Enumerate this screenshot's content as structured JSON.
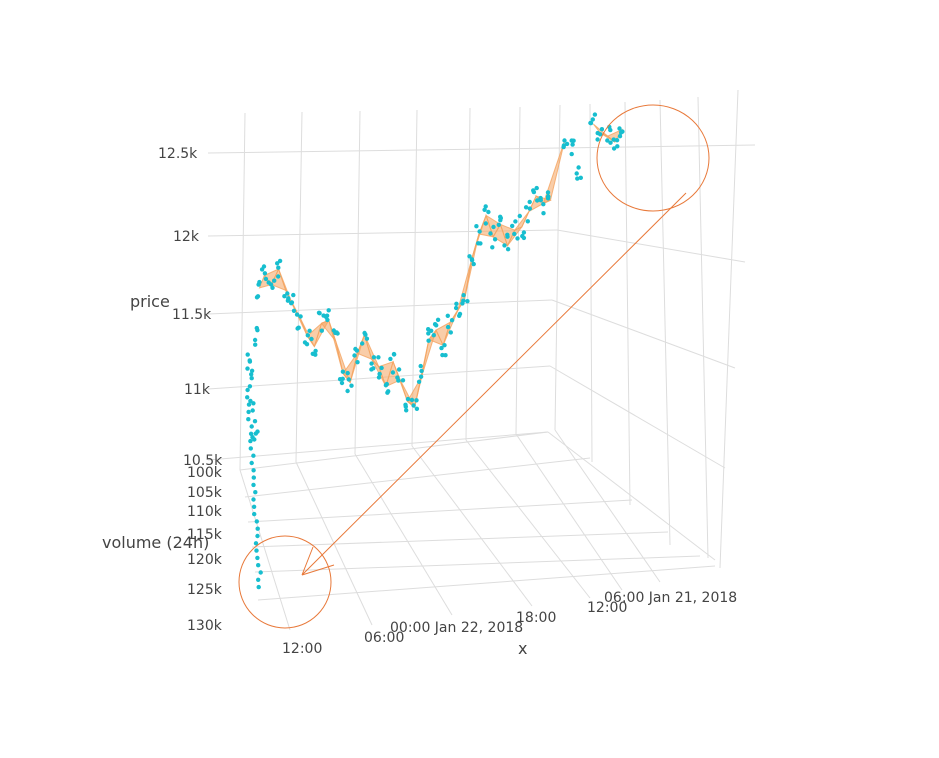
{
  "chart_data": {
    "type": "scatter",
    "xlabel": "x",
    "ylabel": "price",
    "zlabel": "volume (24h)",
    "price_ticks": [
      "12.5k",
      "12k",
      "11.5k",
      "11k",
      "10.5k"
    ],
    "volume_ticks": [
      "100k",
      "105k",
      "110k",
      "115k",
      "120k",
      "125k",
      "130k"
    ],
    "x_ticks": [
      "12:00",
      "06:00",
      "00:00 Jan 22, 2018",
      "18:00",
      "12:00",
      "06:00 Jan 21, 2018"
    ],
    "ylim": [
      10500,
      12700
    ],
    "series": [
      {
        "marker_color": "#17becf",
        "fill_color": "#f4a460",
        "points": [
          [
            "2018-01-22 13:00",
            11150
          ],
          [
            "2018-01-22 12:55",
            11020
          ],
          [
            "2018-01-22 12:50",
            10820
          ],
          [
            "2018-01-22 12:40",
            10640
          ],
          [
            "2018-01-22 12:30",
            11320
          ],
          [
            "2018-01-22 12:20",
            11620
          ],
          [
            "2018-01-22 12:00",
            11700
          ],
          [
            "2018-01-22 11:30",
            11640
          ],
          [
            "2018-01-22 11:00",
            11740
          ],
          [
            "2018-01-22 10:30",
            11600
          ],
          [
            "2018-01-22 10:00",
            11500
          ],
          [
            "2018-01-22 09:30",
            11420
          ],
          [
            "2018-01-22 09:00",
            11300
          ],
          [
            "2018-01-22 08:30",
            11230
          ],
          [
            "2018-01-22 08:00",
            11380
          ],
          [
            "2018-01-22 07:30",
            11400
          ],
          [
            "2018-01-22 07:00",
            11260
          ],
          [
            "2018-01-22 06:30",
            11050
          ],
          [
            "2018-01-22 06:00",
            10990
          ],
          [
            "2018-01-22 05:30",
            11180
          ],
          [
            "2018-01-22 05:00",
            11300
          ],
          [
            "2018-01-22 04:30",
            11140
          ],
          [
            "2018-01-22 04:00",
            11090
          ],
          [
            "2018-01-22 03:30",
            10960
          ],
          [
            "2018-01-22 03:00",
            11120
          ],
          [
            "2018-01-22 02:30",
            11000
          ],
          [
            "2018-01-22 02:00",
            10860
          ],
          [
            "2018-01-22 01:30",
            10820
          ],
          [
            "2018-01-22 01:00",
            11020
          ],
          [
            "2018-01-22 00:30",
            11260
          ],
          [
            "2018-01-22 00:00",
            11320
          ],
          [
            "2018-01-21 23:30",
            11220
          ],
          [
            "2018-01-21 23:00",
            11370
          ],
          [
            "2018-01-21 22:30",
            11440
          ],
          [
            "2018-01-21 22:00",
            11520
          ],
          [
            "2018-01-21 21:30",
            11780
          ],
          [
            "2018-01-21 21:00",
            11940
          ],
          [
            "2018-01-21 20:30",
            12060
          ],
          [
            "2018-01-21 20:00",
            11920
          ],
          [
            "2018-01-21 19:30",
            12000
          ],
          [
            "2018-01-21 19:00",
            11860
          ],
          [
            "2018-01-21 18:30",
            11960
          ],
          [
            "2018-01-21 18:00",
            11980
          ],
          [
            "2018-01-21 17:30",
            12080
          ],
          [
            "2018-01-21 17:00",
            12180
          ],
          [
            "2018-01-21 16:30",
            12130
          ],
          [
            "2018-01-21 16:00",
            12150
          ],
          [
            "2018-01-21 15:00",
            12540
          ],
          [
            "2018-01-21 14:30",
            12500
          ],
          [
            "2018-01-21 14:00",
            12320
          ],
          [
            "2018-01-21 13:00",
            12640
          ],
          [
            "2018-01-21 12:30",
            12580
          ],
          [
            "2018-01-21 12:00",
            12560
          ],
          [
            "2018-01-21 11:30",
            12520
          ],
          [
            "2018-01-21 11:00",
            12600
          ]
        ]
      }
    ],
    "annotations": [
      {
        "type": "circle",
        "color": "#e8793a"
      },
      {
        "type": "circle",
        "color": "#e8793a"
      },
      {
        "type": "arrow",
        "color": "#e8793a"
      }
    ],
    "grid": true
  }
}
